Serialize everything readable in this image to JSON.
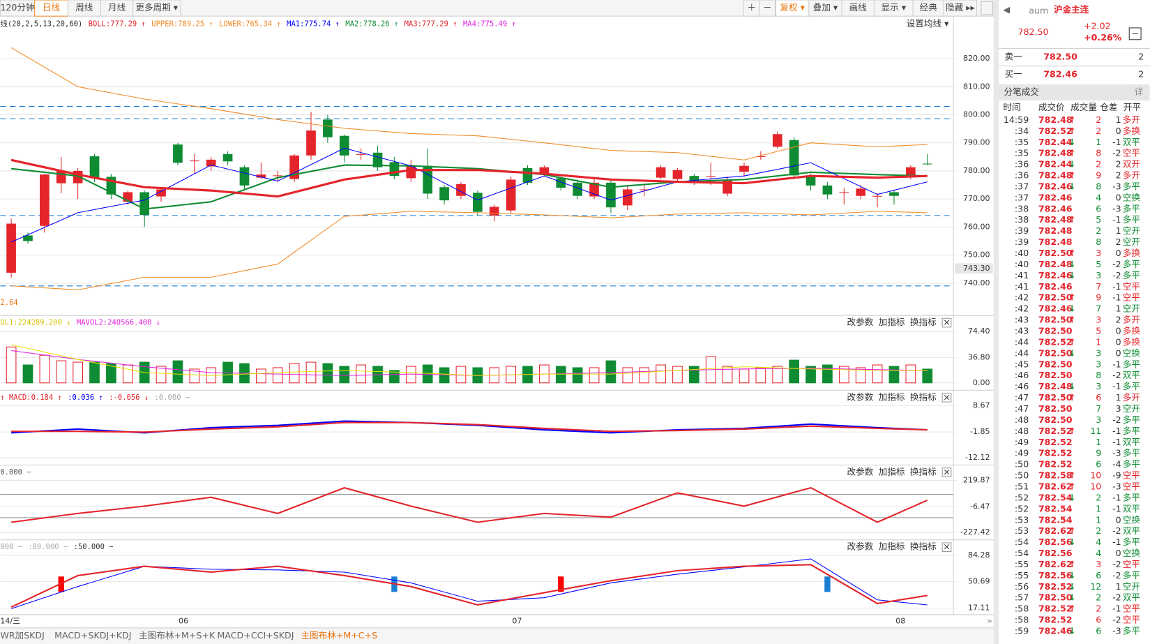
{
  "toolbar": {
    "left": [
      "120分钟",
      "日线",
      "周线",
      "月线",
      "更多周期 ▾"
    ],
    "active_left": 1,
    "right": [
      "＋",
      "－",
      "复权 ▾",
      "叠加 ▾",
      "画线",
      "显示 ▾",
      "经典",
      "隐藏 ▸▸"
    ],
    "active_right": 2
  },
  "panel_buttons": [
    "改参数",
    "加指标",
    "换指标",
    "×"
  ],
  "sample_index": [
    0,
    4,
    8,
    12,
    16,
    20,
    24,
    28,
    32,
    36,
    40,
    44,
    48,
    52,
    55
  ],
  "main": {
    "header": [
      {
        "text": "线(20,2,5,13,20,60)",
        "color": "#333333"
      },
      {
        "text": "BOLL:777.29 ↑",
        "color": "#e4242b"
      },
      {
        "text": "UPPER:789.25 ↑",
        "color": "#f08a24"
      },
      {
        "text": "LOWER:765.34 ↑",
        "color": "#f08a24"
      },
      {
        "text": "MA1:775.74 ↑",
        "color": "#0000ff"
      },
      {
        "text": "MA2:778.26 ↑",
        "color": "#0f8c33"
      },
      {
        "text": "MA3:777.29 ↑",
        "color": "#e4242b"
      },
      {
        "text": "MA4:775.49 ↑",
        "color": "#e020e0"
      }
    ],
    "settings": "设置均线 ▾",
    "ylim": [
      729.8,
      829.15
    ],
    "yticks": [
      {
        "value": 820,
        "label": "820.00"
      },
      {
        "value": 810,
        "label": "810.00"
      },
      {
        "value": 800,
        "label": "800.00"
      },
      {
        "value": 790,
        "label": "790.00"
      },
      {
        "value": 780,
        "label": "780.00"
      },
      {
        "value": 770,
        "label": "770.00"
      },
      {
        "value": 760,
        "label": "760.00"
      },
      {
        "value": 750,
        "label": "750.00"
      },
      {
        "value": 740,
        "label": "740.00"
      }
    ],
    "last_price_label": "743.30",
    "corner_label": "2.64",
    "levels": [
      803,
      798.6,
      764.1,
      739
    ],
    "candles": {
      "open": [
        743.7,
        757,
        760.4,
        775.6,
        775.6,
        785.2,
        777.9,
        769,
        772.4,
        770.9,
        789.4,
        783.7,
        781.6,
        786,
        781.3,
        777.6,
        778.2,
        777.1,
        785.5,
        798.3,
        792.5,
        786,
        786.5,
        783.1,
        777.4,
        781.8,
        774.2,
        771.1,
        772.2,
        764.1,
        765.9,
        781,
        778.7,
        777.4,
        775.8,
        770.9,
        775.8,
        767.7,
        773.4,
        777.6,
        777.1,
        778.2,
        778,
        771.9,
        779.7,
        785.2,
        788.6,
        791,
        777.9,
        774.8,
        772.4,
        771.1,
        771.1,
        772.4,
        778.2,
        782.6
      ],
      "high": [
        763,
        758,
        779,
        785,
        781,
        786,
        779,
        773,
        773,
        774,
        790,
        786,
        785,
        787,
        782,
        783,
        780,
        786,
        801,
        800,
        793,
        788,
        789,
        785,
        784,
        788,
        775,
        776,
        773,
        768,
        778,
        782,
        782,
        778,
        777,
        777,
        777,
        775,
        775,
        782,
        781,
        779,
        783,
        778,
        783,
        787,
        794,
        792,
        779,
        776,
        774,
        775,
        772,
        773,
        782,
        786
      ],
      "low": [
        742,
        754,
        758,
        772,
        770,
        776,
        770,
        768,
        760,
        769,
        782,
        779,
        780,
        782,
        773,
        777,
        776,
        776,
        784,
        790,
        783,
        784,
        780,
        777,
        776,
        770,
        768,
        770,
        764,
        762,
        765,
        775,
        778,
        773,
        770,
        770,
        765,
        766,
        771,
        777,
        776,
        775,
        775,
        771,
        778,
        784,
        788,
        777,
        773,
        770,
        768,
        770,
        767,
        768,
        777,
        782
      ],
      "close": [
        761.2,
        755,
        778.7,
        780,
        780,
        777.6,
        771.6,
        772.4,
        764.3,
        773.4,
        782.9,
        783.7,
        784,
        783.4,
        774.8,
        778.7,
        778.4,
        785.5,
        794.4,
        792,
        785.5,
        786,
        781.3,
        778.2,
        781.8,
        771.9,
        769.5,
        775.3,
        765.4,
        767.2,
        776.9,
        775.8,
        781.3,
        774,
        771.1,
        775.8,
        767,
        773.4,
        773.4,
        781.3,
        780.3,
        776.6,
        778.2,
        776.9,
        781.8,
        785.2,
        793.1,
        778.4,
        774.8,
        771.6,
        772.4,
        773.7,
        771.1,
        771.1,
        781.3,
        782.5
      ]
    },
    "lines": [
      {
        "color": "#f08a24",
        "width": 1,
        "values": [
          823.9,
          810,
          805.6,
          802.2,
          798.3,
          795.2,
          793.3,
          792.5,
          790,
          787.3,
          786.5,
          783.9,
          790,
          788.6,
          789.4
        ]
      },
      {
        "color": "#f08a24",
        "width": 1,
        "values": [
          739,
          737.6,
          742.1,
          742.1,
          746.8,
          763.8,
          765.6,
          765.1,
          764.3,
          763.3,
          764.6,
          765.1,
          764.3,
          765.6,
          765.1
        ]
      },
      {
        "color": "#0f8c33",
        "width": 2,
        "values": [
          780.8,
          778.2,
          766.4,
          769,
          777.6,
          782.1,
          781.8,
          780.8,
          778.7,
          774.2,
          776.1,
          776.9,
          779.5,
          778.7,
          778.2
        ]
      },
      {
        "color": "#0000ff",
        "width": 1,
        "values": [
          754.6,
          765.1,
          769.6,
          782.1,
          776.4,
          788.1,
          781.8,
          769.6,
          778.2,
          769.6,
          776.1,
          778.2,
          782.9,
          771.6,
          776.1
        ]
      },
      {
        "color": "#e4242b",
        "width": 3,
        "values": [
          783.9,
          778.7,
          774.2,
          773,
          770.9,
          776.9,
          780.3,
          780.3,
          779,
          776.9,
          776.1,
          775.6,
          778.2,
          777.6,
          778.2
        ]
      }
    ]
  },
  "volume": {
    "header": [
      {
        "text": "OL1:224289.200 ↓",
        "color": "#d6c000"
      },
      {
        "text": "MAVOL2:240566.400 ↓",
        "color": "#e020e0"
      }
    ],
    "ylim": [
      0,
      74.4
    ],
    "yticks": [
      {
        "value": 74.4,
        "label": "74.40"
      },
      {
        "value": 36.8,
        "label": "36.80"
      },
      {
        "value": 0,
        "label": "0.00"
      }
    ],
    "values": [
      52,
      26,
      40,
      32,
      30,
      30,
      28,
      26,
      30,
      24,
      32,
      20,
      22,
      30,
      28,
      20,
      22,
      28,
      30,
      28,
      24,
      26,
      24,
      18,
      24,
      26,
      22,
      24,
      22,
      22,
      24,
      24,
      26,
      24,
      22,
      22,
      32,
      22,
      22,
      26,
      24,
      24,
      38,
      24,
      20,
      22,
      24,
      33,
      24,
      26,
      24,
      22,
      26,
      24,
      26,
      20
    ],
    "lines": [
      {
        "color": "#e020e0",
        "width": 1,
        "values": [
          46.8,
          34,
          23.4,
          14.9,
          12.8,
          10.6,
          12.8,
          10.6,
          12.8,
          14.9,
          18.1,
          20.2,
          21.3,
          19.1,
          18.1
        ]
      },
      {
        "color": "#e8e000",
        "width": 1,
        "values": [
          55.3,
          34,
          14.9,
          10.6,
          14.9,
          18.1,
          14.9,
          10.6,
          12.8,
          12.8,
          18.1,
          23.4,
          20.2,
          18.1,
          18.1
        ]
      }
    ]
  },
  "macd": {
    "header": [
      {
        "text": "↑ MACD:0.184 ↑",
        "color": "#e4242b"
      },
      {
        "text": ":0.036 ↑",
        "color": "#0000ff"
      },
      {
        "text": ":-0.056 ↓",
        "color": "#e4242b"
      },
      {
        "text": ":0.000 −",
        "color": "#aaaaaa"
      }
    ],
    "ylim": [
      -12.12,
      8.67
    ],
    "yticks": [
      8.67,
      -1.85,
      -12.12
    ],
    "lines": [
      {
        "color": "#0000ff",
        "width": 2,
        "values": [
          -2.2,
          -0.7,
          -2.2,
          -0.1,
          0.8,
          2.5,
          1.9,
          0.8,
          -1,
          -2.2,
          -1,
          -0.4,
          1.3,
          -0.1,
          -1
        ]
      },
      {
        "color": "#e4242b",
        "width": 2,
        "values": [
          -1.6,
          -1.6,
          -1.9,
          -0.7,
          0.2,
          1.9,
          1.9,
          1.1,
          -0.4,
          -1.6,
          -1.3,
          -0.7,
          0.5,
          -0.4,
          -1
        ]
      }
    ]
  },
  "cci": {
    "header": [
      {
        "text": "0.000 −",
        "color": "#555555"
      }
    ],
    "ylim": [
      -227.42,
      219.87
    ],
    "yticks": [
      219.87,
      -6.47,
      -227.42
    ],
    "levels": [
      100,
      -100
    ],
    "lines": [
      {
        "color": "#e4242b",
        "width": 2,
        "values": [
          -139,
          -63.7,
          -0.7,
          75,
          -63.7,
          157,
          -0.7,
          -139,
          -63.7,
          -95,
          113,
          -0.7,
          157,
          -139,
          50
        ]
      }
    ]
  },
  "kdj": {
    "header": [
      {
        "text": "000 −",
        "color": "#aaaaaa"
      },
      {
        "text": ":80.000 −",
        "color": "#aaaaaa"
      },
      {
        "text": ":50.000 −",
        "color": "#333333"
      }
    ],
    "ylim": [
      17.11,
      84.28
    ],
    "yticks": [
      84.28,
      50.69,
      17.11
    ],
    "lines": [
      {
        "color": "#0000ff",
        "width": 1,
        "values": [
          16.4,
          44.4,
          70.3,
          66.5,
          65.6,
          62.8,
          49.1,
          25.8,
          30.3,
          49.1,
          60.2,
          69.4,
          79.6,
          27.6,
          21.1
        ]
      },
      {
        "color": "#e4242b",
        "width": 2,
        "values": [
          18.2,
          58.4,
          70.3,
          62.8,
          70.3,
          58.4,
          44.4,
          21.1,
          36.7,
          51.9,
          64.7,
          70.3,
          72.2,
          22.9,
          33.2
        ]
      }
    ],
    "signals": [
      {
        "index": 3,
        "color": "#ff0000"
      },
      {
        "index": 23,
        "color": "#1a7fd4"
      },
      {
        "index": 33,
        "color": "#ff0000"
      },
      {
        "index": 49,
        "color": "#1a7fd4"
      }
    ]
  },
  "x_labels": [
    "14/三",
    "06",
    "07",
    "08"
  ],
  "tabs": [
    "WR加SKDJ",
    "MACD+SKDJ+KDJ",
    "主图布林+M+S+K",
    "MACD+CCI+SKDJ",
    "主图布林+M+C+S"
  ],
  "active_tab": 4,
  "quote": {
    "code": "aum",
    "name": "沪金主连",
    "price": "782.50",
    "change": "+2.02",
    "change_pct": "+0.26%",
    "ask_label": "卖一",
    "ask_price": "782.50",
    "ask_qty": "2",
    "bid_label": "买一",
    "bid_price": "782.46",
    "bid_qty": "2",
    "ticks_title": "分笔成交",
    "detail": "详",
    "columns": [
      "时间",
      "成交价",
      "成交量",
      "仓差",
      "开平"
    ],
    "rows": [
      [
        "14:59",
        "782.48",
        "↑",
        "2",
        "1",
        "多开",
        "red"
      ],
      [
        ":34",
        "782.52",
        "↑",
        "2",
        "0",
        "多换",
        "red"
      ],
      [
        ":35",
        "782.44",
        "↓",
        "1",
        "-1",
        "双平",
        "green"
      ],
      [
        ":35",
        "782.48",
        "↑",
        "8",
        "-2",
        "空平",
        "red"
      ],
      [
        ":36",
        "782.44",
        "↓",
        "2",
        "2",
        "双开",
        "red"
      ],
      [
        ":36",
        "782.48",
        "↑",
        "9",
        "2",
        "多开",
        "red"
      ],
      [
        ":37",
        "782.46",
        "↓",
        "8",
        "-3",
        "多平",
        "green"
      ],
      [
        ":37",
        "782.46",
        null,
        "4",
        "0",
        "空换",
        "green"
      ],
      [
        ":38",
        "782.46",
        null,
        "6",
        "-3",
        "多平",
        "green"
      ],
      [
        ":38",
        "782.48",
        "↑",
        "5",
        "-1",
        "多平",
        "green"
      ],
      [
        ":39",
        "782.48",
        null,
        "2",
        "1",
        "空开",
        "green"
      ],
      [
        ":39",
        "782.48",
        null,
        "8",
        "2",
        "空开",
        "green"
      ],
      [
        ":40",
        "782.50",
        "↑",
        "3",
        "0",
        "多换",
        "red"
      ],
      [
        ":40",
        "782.48",
        "↓",
        "5",
        "-2",
        "多平",
        "green"
      ],
      [
        ":41",
        "782.46",
        "↓",
        "3",
        "-2",
        "多平",
        "green"
      ],
      [
        ":41",
        "782.46",
        null,
        "7",
        "-1",
        "空平",
        "red"
      ],
      [
        ":42",
        "782.50",
        "↑",
        "9",
        "-1",
        "空平",
        "red"
      ],
      [
        ":42",
        "782.46",
        "↓",
        "7",
        "1",
        "空开",
        "green"
      ],
      [
        ":43",
        "782.50",
        "↑",
        "3",
        "2",
        "多开",
        "red"
      ],
      [
        ":43",
        "782.50",
        null,
        "5",
        "0",
        "多换",
        "red"
      ],
      [
        ":44",
        "782.52",
        "↑",
        "1",
        "0",
        "多换",
        "red"
      ],
      [
        ":44",
        "782.50",
        "↓",
        "3",
        "0",
        "空换",
        "green"
      ],
      [
        ":45",
        "782.50",
        null,
        "3",
        "-1",
        "多平",
        "green"
      ],
      [
        ":46",
        "782.50",
        null,
        "8",
        "-2",
        "双平",
        "green"
      ],
      [
        ":46",
        "782.48",
        "↓",
        "3",
        "-1",
        "多平",
        "green"
      ],
      [
        ":47",
        "782.50",
        "↑",
        "6",
        "1",
        "多开",
        "red"
      ],
      [
        ":47",
        "782.50",
        null,
        "7",
        "3",
        "空开",
        "green"
      ],
      [
        ":48",
        "782.50",
        null,
        "3",
        "-2",
        "多平",
        "green"
      ],
      [
        ":48",
        "782.52",
        "↑",
        "11",
        "-1",
        "多平",
        "green"
      ],
      [
        ":49",
        "782.52",
        null,
        "1",
        "-1",
        "双平",
        "green"
      ],
      [
        ":49",
        "782.52",
        null,
        "9",
        "-3",
        "多平",
        "green"
      ],
      [
        ":50",
        "782.52",
        null,
        "6",
        "-4",
        "多平",
        "green"
      ],
      [
        ":50",
        "782.58",
        "↑",
        "10",
        "-9",
        "空平",
        "red"
      ],
      [
        ":51",
        "782.62",
        "↑",
        "10",
        "-3",
        "空平",
        "red"
      ],
      [
        ":52",
        "782.54",
        "↓",
        "2",
        "-1",
        "多平",
        "green"
      ],
      [
        ":52",
        "782.54",
        null,
        "1",
        "-1",
        "双平",
        "green"
      ],
      [
        ":53",
        "782.54",
        null,
        "1",
        "0",
        "空换",
        "green"
      ],
      [
        ":53",
        "782.62",
        "↑",
        "2",
        "-2",
        "双平",
        "green"
      ],
      [
        ":54",
        "782.56",
        "↓",
        "4",
        "-1",
        "多平",
        "green"
      ],
      [
        ":54",
        "782.56",
        null,
        "4",
        "0",
        "空换",
        "green"
      ],
      [
        ":55",
        "782.62",
        "↑",
        "3",
        "-2",
        "空平",
        "red"
      ],
      [
        ":55",
        "782.56",
        "↓",
        "6",
        "-2",
        "多平",
        "green"
      ],
      [
        ":56",
        "782.52",
        "↓",
        "12",
        "1",
        "空开",
        "green"
      ],
      [
        ":57",
        "782.50",
        "↓",
        "2",
        "-2",
        "双平",
        "green"
      ],
      [
        ":58",
        "782.52",
        "↑",
        "2",
        "-1",
        "空平",
        "red"
      ],
      [
        ":58",
        "782.52",
        null,
        "6",
        "-2",
        "空平",
        "red"
      ],
      [
        ":59",
        "782.46",
        "↓",
        "6",
        "-3",
        "多平",
        "green"
      ]
    ]
  }
}
